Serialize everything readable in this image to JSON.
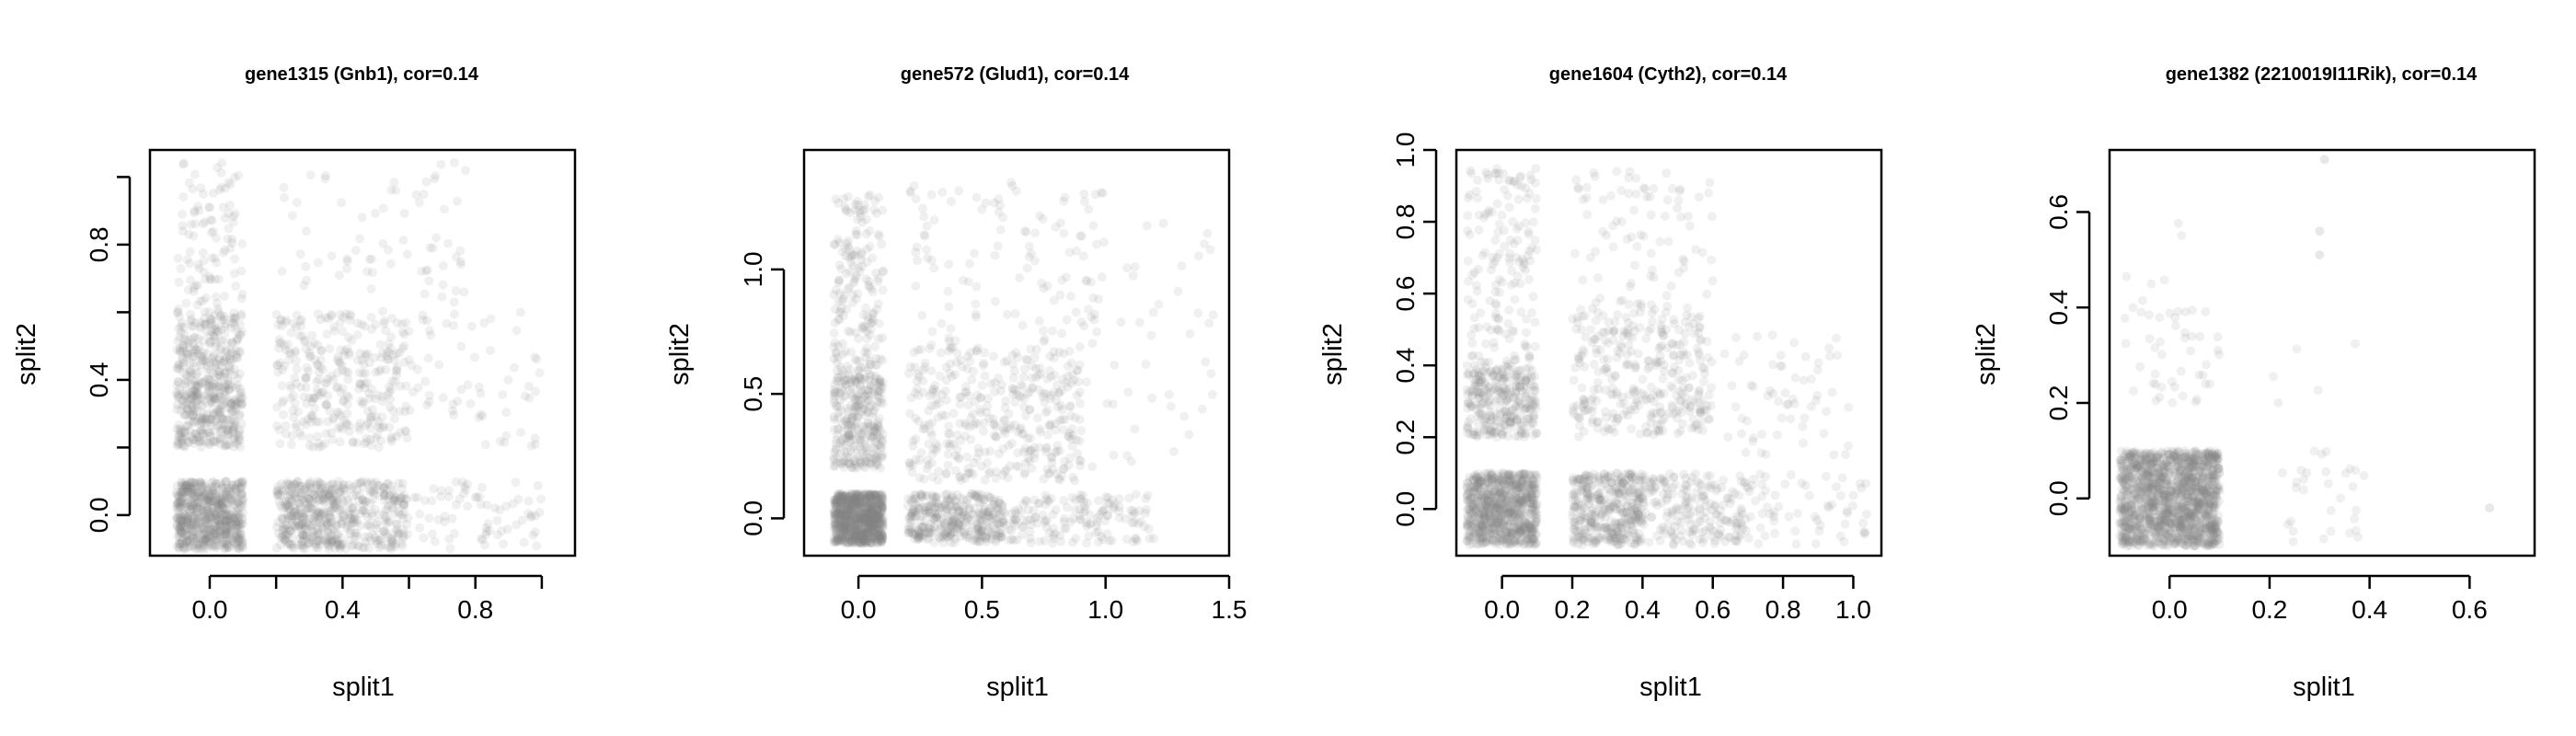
{
  "chart_data": [
    {
      "type": "scatter",
      "title": "gene1315 (Gnb1), cor=0.14",
      "xlabel": "split1",
      "ylabel": "split2",
      "xlim": [
        -0.18,
        1.1
      ],
      "ylim": [
        -0.12,
        1.08
      ],
      "xticks": [
        0.0,
        0.2,
        0.4,
        0.6,
        0.8,
        1.0
      ],
      "xtick_labels": [
        "0.0",
        "",
        "0.4",
        "",
        "0.8",
        ""
      ],
      "yticks": [
        0.0,
        0.2,
        0.4,
        0.6,
        0.8,
        1.0
      ],
      "ytick_labels": [
        "0.0",
        "",
        "0.4",
        "",
        "0.8",
        ""
      ],
      "point_color": "#808080",
      "clusters": [
        {
          "x": [
            -0.1,
            0.1
          ],
          "y": [
            -0.1,
            0.1
          ],
          "n": 650
        },
        {
          "x": [
            -0.1,
            0.1
          ],
          "y": [
            0.2,
            0.4
          ],
          "n": 320
        },
        {
          "x": [
            -0.1,
            0.1
          ],
          "y": [
            0.4,
            0.6
          ],
          "n": 200
        },
        {
          "x": [
            -0.1,
            0.1
          ],
          "y": [
            0.6,
            1.05
          ],
          "n": 100
        },
        {
          "x": [
            0.2,
            0.4
          ],
          "y": [
            -0.1,
            0.1
          ],
          "n": 360
        },
        {
          "x": [
            0.4,
            0.6
          ],
          "y": [
            -0.1,
            0.1
          ],
          "n": 200
        },
        {
          "x": [
            0.6,
            1.0
          ],
          "y": [
            -0.1,
            0.1
          ],
          "n": 70
        },
        {
          "x": [
            0.2,
            0.6
          ],
          "y": [
            0.2,
            0.6
          ],
          "n": 320
        },
        {
          "x": [
            0.2,
            0.8
          ],
          "y": [
            0.6,
            1.05
          ],
          "n": 70
        },
        {
          "x": [
            0.6,
            1.0
          ],
          "y": [
            0.2,
            0.6
          ],
          "n": 60
        }
      ]
    },
    {
      "type": "scatter",
      "title": "gene572 (Glud1), cor=0.14",
      "xlabel": "split1",
      "ylabel": "split2",
      "xlim": [
        -0.22,
        1.5
      ],
      "ylim": [
        -0.15,
        1.48
      ],
      "xticks": [
        0.0,
        0.5,
        1.0,
        1.5
      ],
      "xtick_labels": [
        "0.0",
        "0.5",
        "1.0",
        "1.5"
      ],
      "yticks": [
        0.0,
        0.5,
        1.0
      ],
      "ytick_labels": [
        "0.0",
        "0.5",
        "1.0"
      ],
      "point_color": "#808080",
      "clusters": [
        {
          "x": [
            -0.1,
            0.1
          ],
          "y": [
            -0.1,
            0.1
          ],
          "n": 900
        },
        {
          "x": [
            -0.1,
            0.1
          ],
          "y": [
            0.2,
            0.6
          ],
          "n": 300
        },
        {
          "x": [
            -0.1,
            0.1
          ],
          "y": [
            0.6,
            1.3
          ],
          "n": 170
        },
        {
          "x": [
            0.2,
            0.6
          ],
          "y": [
            -0.1,
            0.1
          ],
          "n": 360
        },
        {
          "x": [
            0.6,
            1.2
          ],
          "y": [
            -0.1,
            0.1
          ],
          "n": 150
        },
        {
          "x": [
            0.2,
            0.9
          ],
          "y": [
            0.15,
            0.7
          ],
          "n": 380
        },
        {
          "x": [
            0.2,
            1.0
          ],
          "y": [
            0.7,
            1.35
          ],
          "n": 110
        },
        {
          "x": [
            0.9,
            1.45
          ],
          "y": [
            0.1,
            1.2
          ],
          "n": 50
        }
      ]
    },
    {
      "type": "scatter",
      "title": "gene1604 (Cyth2), cor=0.14",
      "xlabel": "split1",
      "ylabel": "split2",
      "xlim": [
        -0.13,
        1.08
      ],
      "ylim": [
        -0.13,
        1.0
      ],
      "xticks": [
        0.0,
        0.2,
        0.4,
        0.6,
        0.8,
        1.0
      ],
      "xtick_labels": [
        "0.0",
        "0.2",
        "0.4",
        "0.6",
        "0.8",
        "1.0"
      ],
      "yticks": [
        0.0,
        0.2,
        0.4,
        0.6,
        0.8,
        1.0
      ],
      "ytick_labels": [
        "0.0",
        "0.2",
        "0.4",
        "0.6",
        "0.8",
        "1.0"
      ],
      "point_color": "#808080",
      "clusters": [
        {
          "x": [
            -0.1,
            0.1
          ],
          "y": [
            -0.1,
            0.1
          ],
          "n": 800
        },
        {
          "x": [
            -0.1,
            0.1
          ],
          "y": [
            0.2,
            0.4
          ],
          "n": 300
        },
        {
          "x": [
            -0.1,
            0.1
          ],
          "y": [
            0.4,
            0.95
          ],
          "n": 160
        },
        {
          "x": [
            0.2,
            0.4
          ],
          "y": [
            -0.1,
            0.1
          ],
          "n": 380
        },
        {
          "x": [
            0.4,
            0.7
          ],
          "y": [
            -0.1,
            0.1
          ],
          "n": 200
        },
        {
          "x": [
            0.7,
            1.05
          ],
          "y": [
            -0.1,
            0.1
          ],
          "n": 60
        },
        {
          "x": [
            0.2,
            0.6
          ],
          "y": [
            0.2,
            0.55
          ],
          "n": 320
        },
        {
          "x": [
            0.2,
            0.6
          ],
          "y": [
            0.55,
            0.95
          ],
          "n": 90
        },
        {
          "x": [
            0.6,
            1.0
          ],
          "y": [
            0.15,
            0.5
          ],
          "n": 60
        }
      ]
    },
    {
      "type": "scatter",
      "title": "gene1382 (2210019I11Rik), cor=0.14",
      "xlabel": "split1",
      "ylabel": "split2",
      "xlim": [
        -0.12,
        0.73
      ],
      "ylim": [
        -0.12,
        0.73
      ],
      "xticks": [
        0.0,
        0.2,
        0.4,
        0.6
      ],
      "xtick_labels": [
        "0.0",
        "0.2",
        "0.4",
        "0.6"
      ],
      "yticks": [
        0.0,
        0.2,
        0.4,
        0.6
      ],
      "ytick_labels": [
        "0.0",
        "0.2",
        "0.4",
        "0.6"
      ],
      "point_color": "#808080",
      "clusters": [
        {
          "x": [
            -0.1,
            0.1
          ],
          "y": [
            -0.1,
            0.1
          ],
          "n": 1500
        },
        {
          "x": [
            -0.1,
            0.1
          ],
          "y": [
            0.2,
            0.4
          ],
          "n": 45
        },
        {
          "x": [
            -0.1,
            0.05
          ],
          "y": [
            0.4,
            0.58
          ],
          "n": 6
        },
        {
          "x": [
            0.2,
            0.4
          ],
          "y": [
            -0.1,
            0.1
          ],
          "n": 30
        },
        {
          "x": [
            0.2,
            0.4
          ],
          "y": [
            0.2,
            0.35
          ],
          "n": 5
        }
      ],
      "extra_points": [
        [
          0.31,
          0.71
        ],
        [
          0.3,
          0.56
        ],
        [
          0.3,
          0.51
        ],
        [
          0.64,
          -0.02
        ]
      ]
    }
  ]
}
